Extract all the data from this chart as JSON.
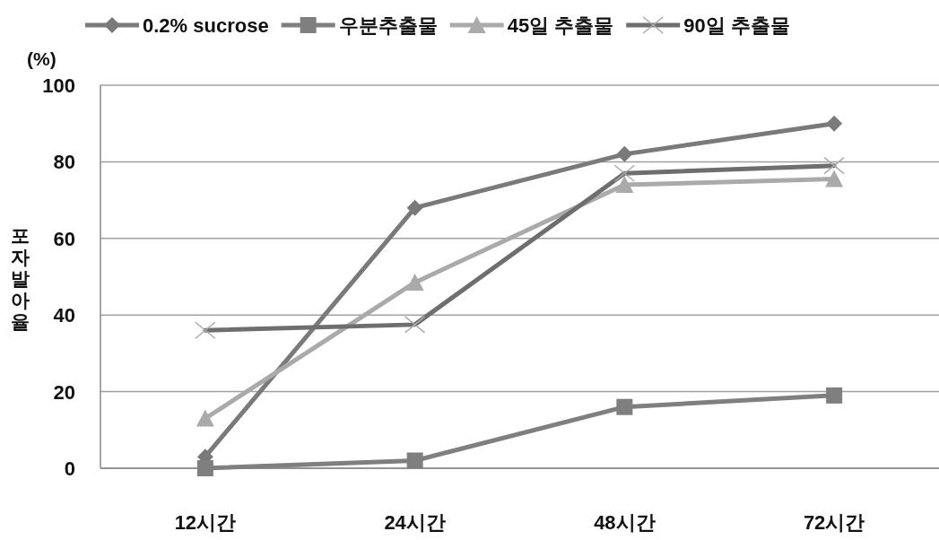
{
  "chart_data": {
    "type": "line",
    "ylabel": "포자발아율",
    "annotations": [
      "(%)"
    ],
    "categories": [
      "12시간",
      "24시간",
      "48시간",
      "72시간"
    ],
    "series": [
      {
        "name": "0.2% sucrose",
        "color": "#7a7a7a",
        "marker": "diamond",
        "values": [
          3,
          68,
          82,
          90
        ]
      },
      {
        "name": "우분추출물",
        "color": "#7f7f7f",
        "marker": "square",
        "values": [
          0,
          2,
          16,
          19
        ]
      },
      {
        "name": "45일 추출물",
        "color": "#aaaaaa",
        "marker": "triangle",
        "values": [
          13,
          48.5,
          74,
          75.5
        ]
      },
      {
        "name": "90일 추출물",
        "color": "#6e6e6e",
        "marker": "cross",
        "values": [
          36,
          37.5,
          77,
          79
        ]
      }
    ],
    "ylim": [
      0,
      100
    ],
    "yticks": [
      0,
      20,
      40,
      60,
      80,
      100
    ],
    "grid": "y",
    "legend": "top",
    "line_style": "solid"
  }
}
